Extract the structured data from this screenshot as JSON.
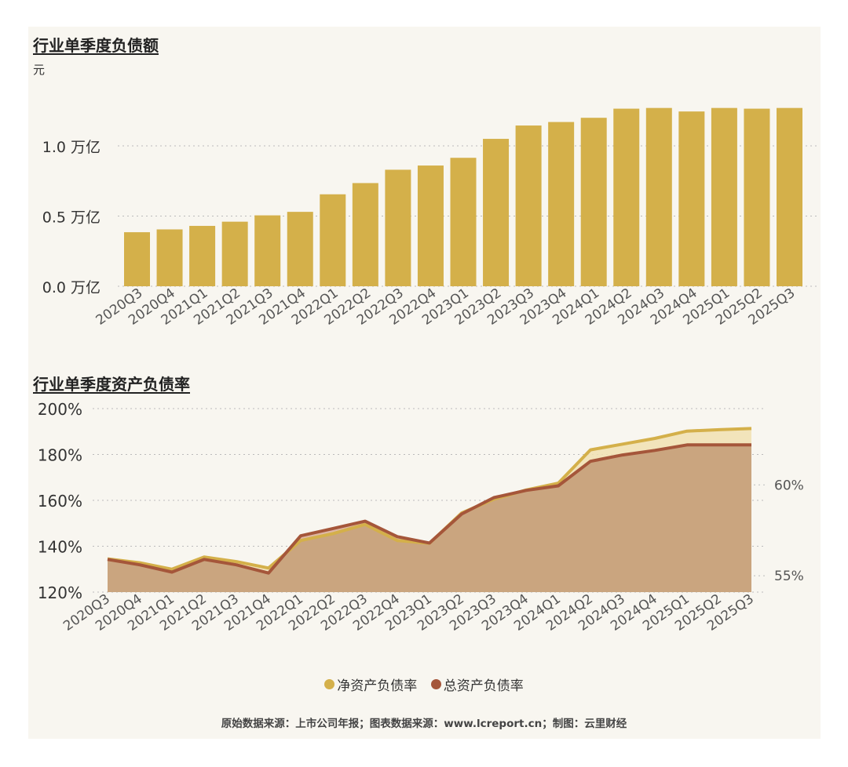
{
  "colors": {
    "gold": "#d4b04a",
    "brown": "#a5563a",
    "fill_net": "#f1e0b2",
    "fill_total": "#caa57f",
    "grid": "#bbbbbb",
    "text": "#333333"
  },
  "chart_data": [
    {
      "type": "bar",
      "title": "行业单季度负债额",
      "unit_label": "元",
      "categories": [
        "2020Q3",
        "2020Q4",
        "2021Q1",
        "2021Q2",
        "2021Q3",
        "2021Q4",
        "2022Q1",
        "2022Q2",
        "2022Q3",
        "2022Q4",
        "2023Q1",
        "2023Q2",
        "2023Q3",
        "2023Q4",
        "2024Q1",
        "2024Q2",
        "2024Q3",
        "2024Q4",
        "2025Q1",
        "2025Q2",
        "2025Q3"
      ],
      "values": [
        0.385,
        0.405,
        0.43,
        0.46,
        0.505,
        0.53,
        0.655,
        0.735,
        0.83,
        0.86,
        0.915,
        1.05,
        1.145,
        1.17,
        1.2,
        1.265,
        1.27,
        1.245,
        1.27,
        1.265,
        1.27
      ],
      "ylim": [
        0,
        1.4
      ],
      "yticks": [
        {
          "value": 0,
          "label": "0.0 万亿"
        },
        {
          "value": 0.5,
          "label": "0.5 万亿"
        },
        {
          "value": 1.0,
          "label": "1.0 万亿"
        }
      ],
      "grid": true
    },
    {
      "type": "area",
      "title": "行业单季度资产负债率",
      "categories": [
        "2020Q3",
        "2020Q4",
        "2021Q1",
        "2021Q2",
        "2021Q3",
        "2021Q4",
        "2022Q1",
        "2022Q2",
        "2022Q3",
        "2022Q4",
        "2023Q1",
        "2023Q2",
        "2023Q3",
        "2023Q4",
        "2024Q1",
        "2024Q2",
        "2024Q3",
        "2024Q4",
        "2025Q1",
        "2025Q2",
        "2025Q3"
      ],
      "series": [
        {
          "name": "净资产负债率",
          "axis": "left",
          "values": [
            134.5,
            132.8,
            130,
            135.3,
            133.3,
            130.5,
            142.5,
            145.5,
            149.5,
            142.5,
            141.3,
            154.5,
            160.5,
            164.5,
            167.5,
            182,
            184.5,
            187,
            190.2,
            190.8,
            191.3
          ]
        },
        {
          "name": "总资产负债率",
          "axis": "right",
          "values": [
            55.9,
            55.6,
            55.2,
            55.9,
            55.6,
            55.15,
            57.2,
            57.6,
            58.0,
            57.15,
            56.8,
            58.4,
            59.3,
            59.7,
            59.95,
            61.3,
            61.65,
            61.9,
            62.2,
            62.2,
            62.2
          ]
        }
      ],
      "ylim_left": [
        120,
        200
      ],
      "yticks_left": [
        120,
        140,
        160,
        180,
        200
      ],
      "ytick_labels_left": [
        "120%",
        "140%",
        "160%",
        "180%",
        "200%"
      ],
      "ylim_right": [
        54.1,
        64.2
      ],
      "yticks_right": [
        55,
        60
      ],
      "ytick_labels_right": [
        "55%",
        "60%"
      ],
      "legend": [
        "净资产负债率",
        "总资产负债率"
      ],
      "legend_position": "bottom",
      "grid": true
    }
  ],
  "source_text": "原始数据来源：上市公司年报；图表数据来源：www.lcreport.cn；制图：云里财经"
}
